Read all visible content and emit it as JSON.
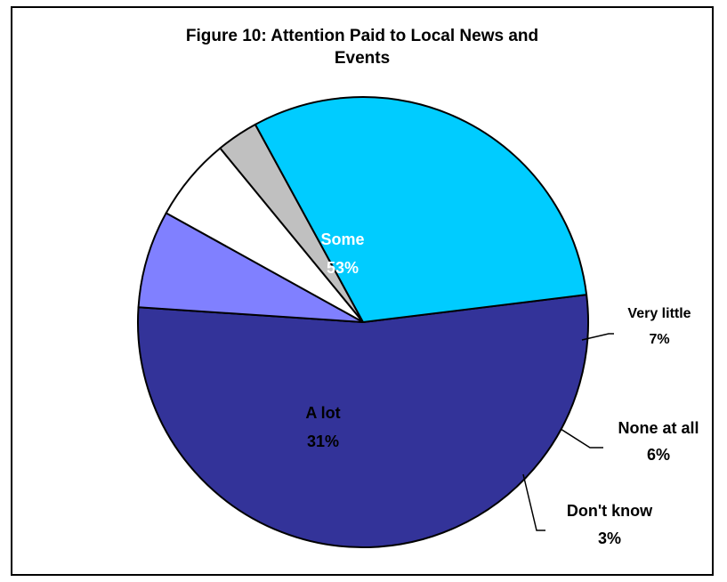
{
  "chart_data": {
    "type": "pie",
    "title_lines": [
      "Figure 10: Attention Paid to Local News and",
      "Events"
    ],
    "slices": [
      {
        "label": "Some",
        "value_label": "53%",
        "value": 53,
        "color": "#333399",
        "label_color": "#ffffff",
        "label_placement": "inside"
      },
      {
        "label": "Very little",
        "value_label": "7%",
        "value": 7,
        "color": "#8080ff",
        "label_color": "#000000",
        "label_placement": "outside"
      },
      {
        "label": "None at all",
        "value_label": "6%",
        "value": 6,
        "color": "#ffffff",
        "label_color": "#000000",
        "label_placement": "outside"
      },
      {
        "label": "Don't know",
        "value_label": "3%",
        "value": 3,
        "color": "#c0c0c0",
        "label_color": "#000000",
        "label_placement": "outside"
      },
      {
        "label": "A lot",
        "value_label": "31%",
        "value": 31,
        "color": "#00ccff",
        "label_color": "#000000",
        "label_placement": "inside"
      }
    ]
  }
}
